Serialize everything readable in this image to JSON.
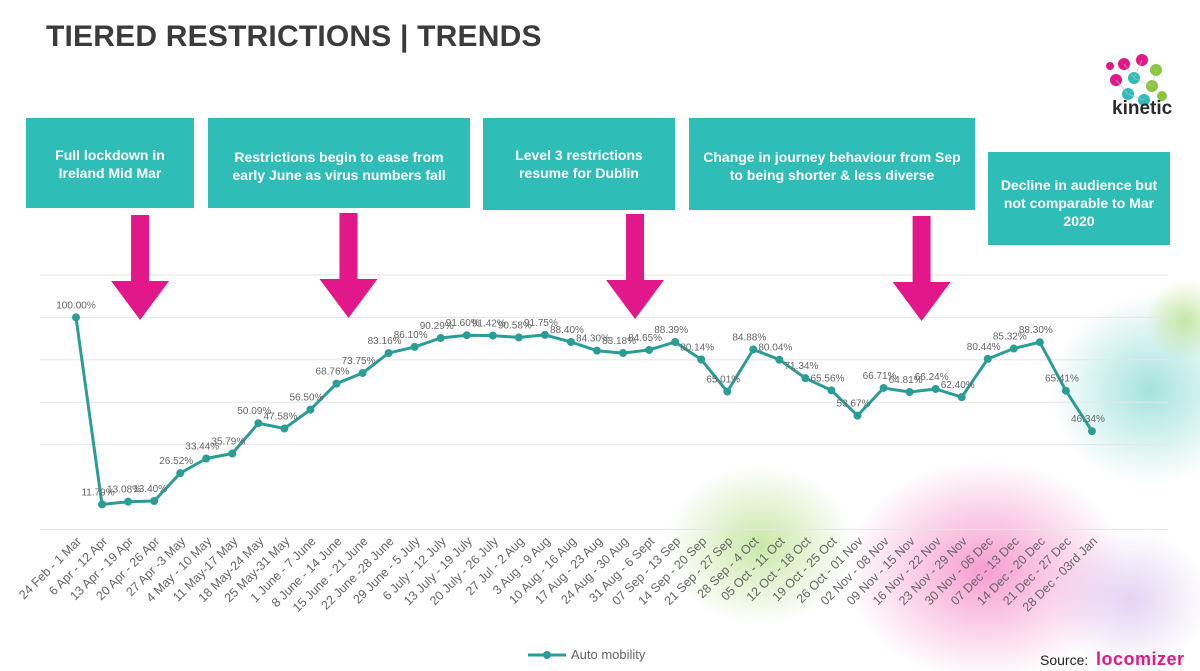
{
  "header": {
    "title": "TIERED RESTRICTIONS | TRENDS"
  },
  "brand": {
    "name": "kinetic"
  },
  "callouts": [
    {
      "text": "Full lockdown in Ireland Mid Mar"
    },
    {
      "text": "Restrictions begin to ease from early June as virus numbers fall"
    },
    {
      "text": "Level 3 restrictions resume for Dublin"
    },
    {
      "text": "Change in journey behaviour from Sep to being shorter & less diverse"
    },
    {
      "text": "Decline in audience but not comparable to Mar 2020"
    }
  ],
  "source": {
    "label": "Source:",
    "logo_text": "locomizer"
  },
  "colors": {
    "line": "#2a9d96",
    "callout": "#2fbdb7",
    "arrow": "#e2188a",
    "axis_text": "#666666"
  },
  "chart_data": {
    "type": "line",
    "title": "",
    "xlabel": "",
    "ylabel": "",
    "ylim": [
      0,
      120
    ],
    "grid": true,
    "legend": "bottom",
    "categories": [
      "24 Feb - 1 Mar",
      "6 Apr - 12 Apr",
      "13 Apr - 19 Apr",
      "20 Apr - 26 Apr",
      "27 Apr -3 May",
      "4 May - 10 May",
      "11 May-17 May",
      "18 May-24 May",
      "25 May-31 May",
      "1 June - 7 June",
      "8 June - 14 June",
      "15 June - 21 June",
      "22 June -28 June",
      "29 June - 5 July",
      "6 July - 12 July",
      "13 July - 19 July",
      "20 July - 26 July",
      "27 Jul - 2 Aug",
      "3 Aug - 9 Aug",
      "10 Aug - 16 Aug",
      "17 Aug - 23 Aug",
      "24 Aug - 30 Aug",
      "31 Aug - 6 Sept",
      "07 Sep - 13 Sep",
      "14 Sep - 20 Sep",
      "21 Sep - 27 Sep",
      "28 Sep - 4 Oct",
      "05 Oct - 11 Oct",
      "12 Oct - 18 Oct",
      "19 Oct - 25 Oct",
      "26 Oct - 01 Nov",
      "02 Nov - 08 Nov",
      "09 Nov - 15 Nov",
      "16 Nov - 22 Nov",
      "23 Nov - 29 Nov",
      "30 Nov - 06 Dec",
      "07 Dec - 13 Dec",
      "14 Dec - 20 Dec",
      "21 Dec - 27 Dec",
      "28 Dec - 03rd Jan"
    ],
    "series": [
      {
        "name": "Auto mobility",
        "values": [
          100.0,
          11.79,
          13.08,
          13.4,
          26.52,
          33.44,
          35.79,
          50.09,
          47.58,
          56.5,
          68.76,
          73.75,
          83.16,
          86.1,
          90.29,
          91.6,
          91.42,
          90.58,
          91.75,
          88.4,
          84.3,
          83.18,
          84.65,
          88.39,
          80.14,
          65.01,
          84.88,
          80.04,
          71.34,
          65.56,
          53.67,
          66.71,
          64.81,
          66.24,
          62.4,
          80.44,
          85.32,
          88.3,
          65.41,
          46.34
        ],
        "labels": [
          "100.00%",
          "11.79%",
          "13.08%",
          "13.40%",
          "26.52%",
          "33.44%",
          "35.79%",
          "50.09%",
          "47.58%",
          "56.50%",
          "68.76%",
          "73.75%",
          "83.16%",
          "86.10%",
          "90.29%",
          "91.60%",
          "91.42%",
          "90.58%",
          "91.75%",
          "88.40%",
          "84.30%",
          "83.18%",
          "84.65%",
          "88.39%",
          "80.14%",
          "65.01%",
          "84.88%",
          "80.04%",
          "71.34%",
          "65.56%",
          "53.67%",
          "66.71%",
          "64.81%",
          "66.24%",
          "62.40%",
          "80.44%",
          "85.32%",
          "88.30%",
          "65.41%",
          "46.34%"
        ]
      }
    ],
    "annotation_arrows_at_index": [
      2,
      10,
      21,
      32
    ]
  }
}
